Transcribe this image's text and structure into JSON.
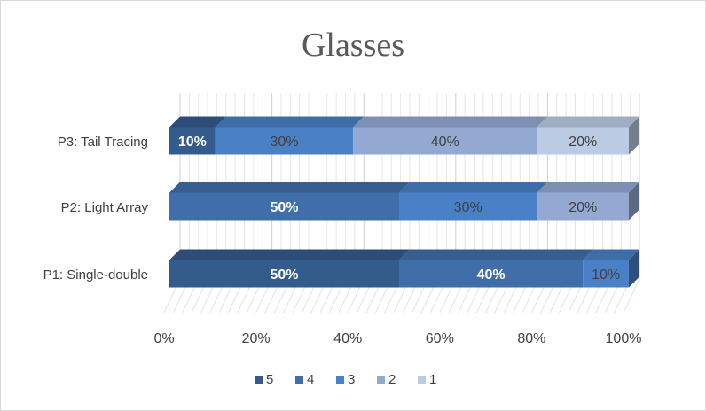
{
  "chart_data": {
    "type": "bar",
    "orientation": "horizontal",
    "stacking": "percent",
    "title": "Glasses",
    "categories": [
      "P1: Single-double",
      "P2: Light Array",
      "P3: Tail Tracing"
    ],
    "series": [
      {
        "name": "5",
        "color": "#335b8c",
        "values": [
          50,
          0,
          10
        ]
      },
      {
        "name": "4",
        "color": "#3f6ea8",
        "values": [
          40,
          50,
          0
        ]
      },
      {
        "name": "3",
        "color": "#4a80c6",
        "values": [
          10,
          30,
          30
        ]
      },
      {
        "name": "2",
        "color": "#93a9d2",
        "values": [
          0,
          20,
          40
        ]
      },
      {
        "name": "1",
        "color": "#bccbe4",
        "values": [
          0,
          0,
          20
        ]
      }
    ],
    "data_labels": [
      [
        "50%",
        "",
        "10%"
      ],
      [
        "40%",
        "50%",
        ""
      ],
      [
        "10%",
        "30%",
        "30%"
      ],
      [
        "",
        "20%",
        "40%"
      ],
      [
        "",
        "",
        "20%"
      ]
    ],
    "xticks": [
      "0%",
      "20%",
      "40%",
      "60%",
      "80%",
      "100%"
    ],
    "xlim": [
      0,
      100
    ],
    "legend_position": "bottom",
    "grid": true
  }
}
